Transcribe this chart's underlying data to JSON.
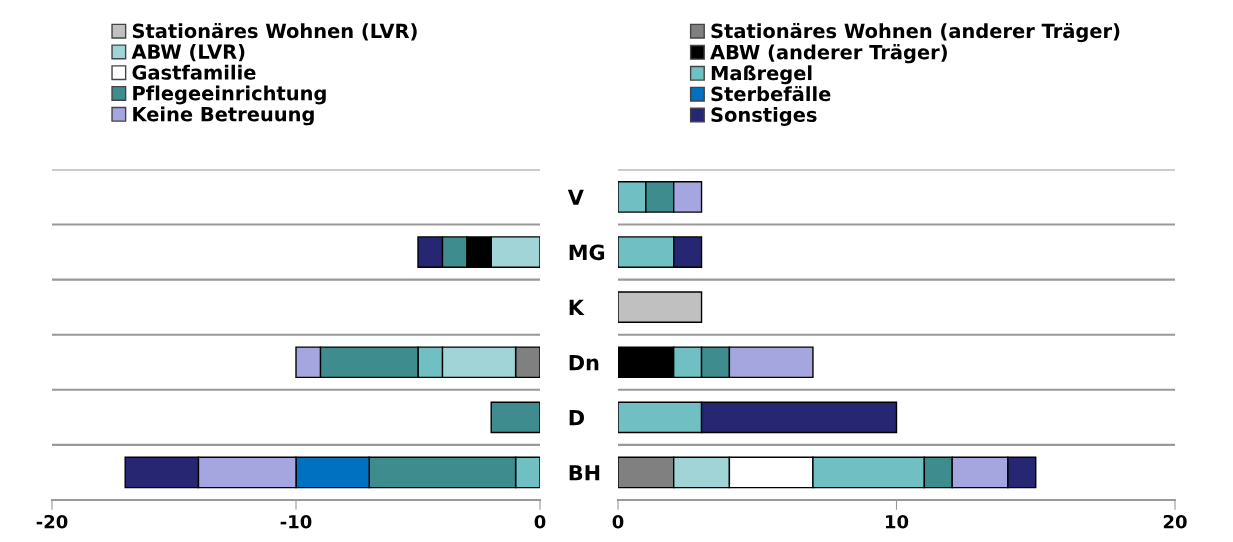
{
  "chart_data": [
    {
      "type": "bar",
      "orientation": "horizontal",
      "stacked": true,
      "categories": [
        "V",
        "MG",
        "K",
        "Dn",
        "D",
        "BH"
      ],
      "xlim": [
        -20,
        0
      ],
      "xticks": [
        -20,
        -10,
        0
      ],
      "grid": "y",
      "legend": "top",
      "series": [
        {
          "name": "Stationäres Wohnen (LVR)",
          "color": "#c0c0c0",
          "values": [
            null,
            null,
            null,
            null,
            null,
            null
          ]
        },
        {
          "name": "Stationäres Wohnen (anderer Träger)",
          "color": "#808080",
          "values": [
            null,
            null,
            null,
            -1,
            null,
            null
          ]
        },
        {
          "name": "ABW (LVR)",
          "color": "#a0d4d6",
          "values": [
            null,
            -2,
            null,
            -3,
            null,
            null
          ]
        },
        {
          "name": "ABW (anderer Träger)",
          "color": "#000000",
          "values": [
            null,
            -1,
            null,
            null,
            null,
            null
          ]
        },
        {
          "name": "Gastfamilie",
          "color": "#ffffff",
          "values": [
            null,
            null,
            null,
            null,
            null,
            null
          ]
        },
        {
          "name": "Maßregel",
          "color": "#70bfc3",
          "values": [
            null,
            null,
            null,
            -1,
            null,
            -1
          ]
        },
        {
          "name": "Pflegeeinrichtung",
          "color": "#3f8c8f",
          "values": [
            null,
            -1,
            null,
            -4,
            -2,
            -6
          ]
        },
        {
          "name": "Sterbefälle",
          "color": "#0070c0",
          "values": [
            null,
            null,
            null,
            null,
            null,
            -3
          ]
        },
        {
          "name": "Keine Betreuung",
          "color": "#a5a5e0",
          "values": [
            null,
            null,
            null,
            -1,
            null,
            -4
          ]
        },
        {
          "name": "Sonstiges",
          "color": "#262673",
          "values": [
            null,
            -1,
            null,
            null,
            null,
            -3
          ]
        }
      ]
    },
    {
      "type": "bar",
      "orientation": "horizontal",
      "stacked": true,
      "categories": [
        null,
        null,
        null,
        null,
        null,
        null
      ],
      "xlim": [
        0,
        20
      ],
      "xticks": [
        0,
        10,
        20
      ],
      "grid": "y",
      "tick_labels": "x",
      "series": [
        {
          "color": "#c0c0c0",
          "values": [
            null,
            null,
            3,
            null,
            null,
            null
          ]
        },
        {
          "color": "#808080",
          "values": [
            null,
            null,
            null,
            null,
            null,
            2
          ]
        },
        {
          "color": "#a0d4d6",
          "values": [
            null,
            null,
            null,
            null,
            null,
            2
          ]
        },
        {
          "color": "#000000",
          "values": [
            null,
            null,
            null,
            2,
            null,
            null
          ]
        },
        {
          "color": "#ffffff",
          "values": [
            null,
            null,
            null,
            null,
            null,
            3
          ]
        },
        {
          "color": "#70bfc3",
          "values": [
            1,
            2,
            null,
            1,
            3,
            4
          ]
        },
        {
          "color": "#3f8c8f",
          "values": [
            1,
            null,
            null,
            1,
            null,
            1
          ]
        },
        {
          "color": "#a5a5e0",
          "values": [
            1,
            null,
            null,
            3,
            null,
            2
          ]
        },
        {
          "color": "#262673",
          "values": [
            null,
            1,
            null,
            null,
            7,
            1
          ]
        }
      ]
    }
  ]
}
